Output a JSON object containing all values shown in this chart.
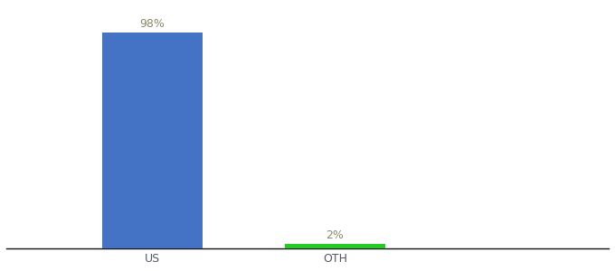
{
  "categories": [
    "US",
    "OTH"
  ],
  "values": [
    98,
    2
  ],
  "bar_colors": [
    "#4472C4",
    "#22CC22"
  ],
  "label_color": "#888866",
  "labels": [
    "98%",
    "2%"
  ],
  "ylim": [
    0,
    110
  ],
  "background_color": "#ffffff",
  "bar_width": 0.55,
  "label_fontsize": 9,
  "tick_fontsize": 9,
  "axis_line_color": "#111111",
  "figsize": [
    6.8,
    3.0
  ],
  "dpi": 100,
  "x_positions": [
    1,
    2
  ],
  "xlim": [
    0.2,
    3.5
  ]
}
